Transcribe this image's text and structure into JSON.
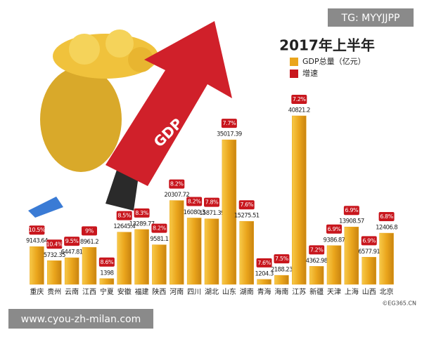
{
  "chart_data": {
    "type": "bar",
    "title": "2017年上半年",
    "watermark": "TG: MYYJJPP",
    "illustration_label": "GDP",
    "footer_url": "www.cyou-zh-milan.com",
    "credit": "©EG365.CN",
    "categories": [
      "重庆",
      "贵州",
      "云南",
      "江西",
      "宁夏",
      "安徽",
      "福建",
      "陕西",
      "河南",
      "四川",
      "湖北",
      "山东",
      "湖南",
      "青海",
      "海南",
      "江苏",
      "新疆",
      "天津",
      "上海",
      "山西",
      "北京"
    ],
    "series": [
      {
        "name": "GDP总量（亿元）",
        "color": "#eaa51c",
        "values": [
          9143.64,
          5732.35,
          6447.81,
          8961.2,
          1398,
          12645.4,
          13289.77,
          9581.1,
          20307.72,
          16080.3,
          15871.39,
          35017.39,
          15275.51,
          1204.3,
          2188.23,
          40821.2,
          4362.98,
          9386.87,
          13908.57,
          6577.91,
          12406.8
        ]
      },
      {
        "name": "增速",
        "color": "#c8161d",
        "values": [
          10.5,
          10.4,
          9.5,
          9,
          8.6,
          8.5,
          8.3,
          8.2,
          8.2,
          8.2,
          7.8,
          7.7,
          7.6,
          7.6,
          7.5,
          7.2,
          7.2,
          6.9,
          6.9,
          6.9,
          6.8
        ],
        "value_labels": [
          "10.5%",
          "10.4%",
          "9.5%",
          "9%",
          "8.6%",
          "8.5%",
          "8.3%",
          "8.2%",
          "8.2%",
          "8.2%",
          "7.8%",
          "7.7%",
          "7.6%",
          "7.6%",
          "7.5%",
          "7.2%",
          "7.2%",
          "6.9%",
          "6.9%",
          "6.9%",
          "6.8%"
        ]
      }
    ]
  }
}
